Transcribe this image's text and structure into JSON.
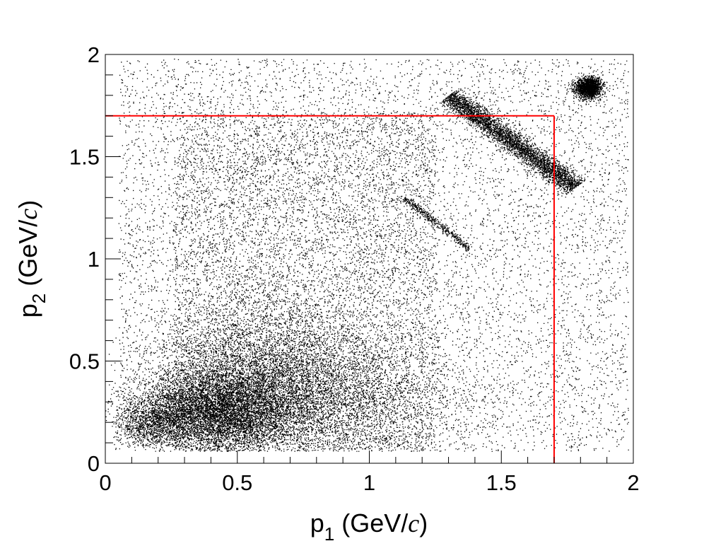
{
  "chart_data": {
    "type": "scatter",
    "title": "",
    "xlabel": {
      "base": "p",
      "sub": "1",
      "unit_open": " (GeV/",
      "unit_italic": "c",
      "unit_close": ")"
    },
    "ylabel": {
      "base": "p",
      "sub": "2",
      "unit_open": " (GeV/",
      "unit_italic": "c",
      "unit_close": ")"
    },
    "xlim": [
      0,
      2
    ],
    "ylim": [
      0,
      2
    ],
    "x_ticks": [
      {
        "value": 0,
        "label": "0"
      },
      {
        "value": 0.5,
        "label": "0.5"
      },
      {
        "value": 1,
        "label": "1"
      },
      {
        "value": 1.5,
        "label": "1.5"
      },
      {
        "value": 2,
        "label": "2"
      }
    ],
    "y_ticks": [
      {
        "value": 0,
        "label": "0"
      },
      {
        "value": 0.5,
        "label": "0.5"
      },
      {
        "value": 1,
        "label": "1"
      },
      {
        "value": 1.5,
        "label": "1.5"
      },
      {
        "value": 2,
        "label": "2"
      }
    ],
    "minor_tick_step": 0.1,
    "grid": false,
    "marker_color": "#000000",
    "cut_line_color": "#ff0000",
    "cut_lines": [
      {
        "x": [
          0,
          1.7
        ],
        "y": [
          1.7,
          1.7
        ]
      },
      {
        "x": [
          1.7,
          1.7
        ],
        "y": [
          0,
          1.7
        ]
      }
    ],
    "density_regions": [
      {
        "shape": "uniform-band",
        "x": [
          0.05,
          1.98
        ],
        "y": [
          0.06,
          1.98
        ],
        "count": 9000
      },
      {
        "shape": "box",
        "x": [
          0.26,
          1.25
        ],
        "y": [
          0.06,
          1.72
        ],
        "count": 6000
      },
      {
        "shape": "blob",
        "cx": 0.42,
        "cy": 0.25,
        "sx": 0.15,
        "sy": 0.1,
        "count": 6500
      },
      {
        "shape": "blob",
        "cx": 0.58,
        "cy": 0.42,
        "sx": 0.2,
        "sy": 0.18,
        "count": 4500
      },
      {
        "shape": "blob",
        "cx": 0.85,
        "cy": 0.32,
        "sx": 0.25,
        "sy": 0.15,
        "count": 3000
      },
      {
        "shape": "blob",
        "cx": 0.18,
        "cy": 0.2,
        "sx": 0.07,
        "sy": 0.06,
        "count": 1100
      },
      {
        "shape": "diagonal-band",
        "x0": 1.3,
        "y0": 1.8,
        "x1": 1.78,
        "y1": 1.35,
        "width": 0.025,
        "count": 3800
      },
      {
        "shape": "diagonal-band",
        "x0": 1.13,
        "y0": 1.3,
        "x1": 1.38,
        "y1": 1.05,
        "width": 0.008,
        "count": 450
      },
      {
        "shape": "blob",
        "cx": 1.83,
        "cy": 1.84,
        "sx": 0.025,
        "sy": 0.025,
        "count": 1800
      }
    ]
  }
}
